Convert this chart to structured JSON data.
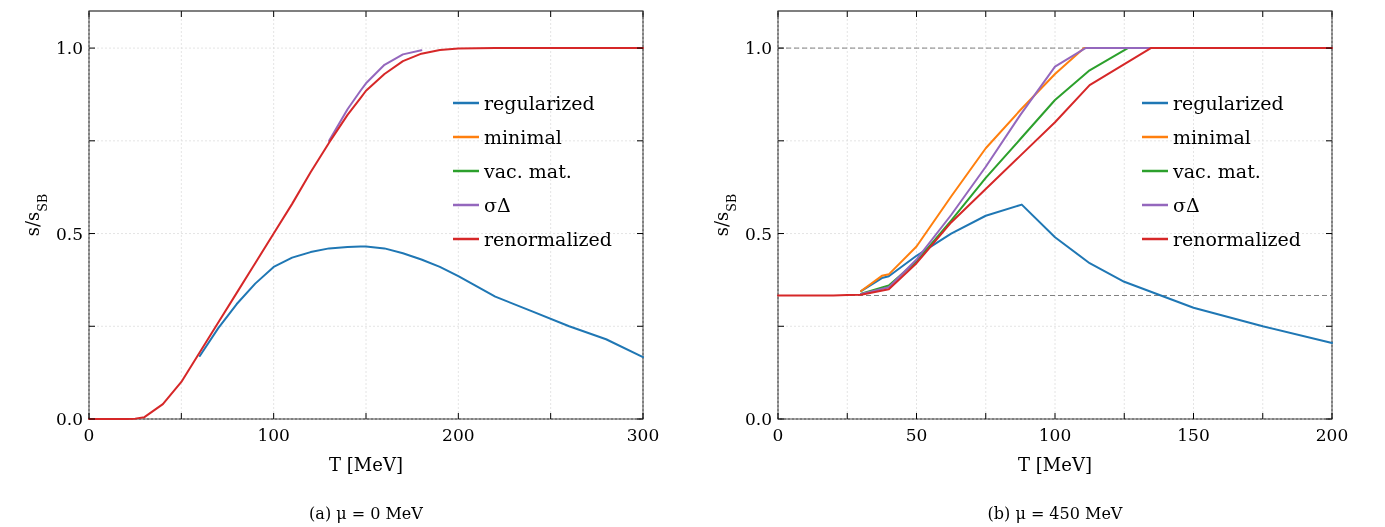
{
  "chart_data": [
    {
      "type": "line",
      "xlabel": "T [MeV]",
      "ylabel": "s/s$_{SB}$",
      "annotations": [
        "(a) μ = 0 MeV"
      ],
      "legend": "right",
      "grid": true,
      "line_style": "solid",
      "marker": "none",
      "xlim": [
        0,
        300
      ],
      "ylim": [
        0,
        1.1
      ],
      "xticks": [
        0,
        {
          "value": 50,
          "label": null
        },
        100,
        {
          "value": 150,
          "label": null
        },
        200,
        {
          "value": 250,
          "label": null
        },
        300
      ],
      "yticks": [
        {
          "value": 0,
          "label": "0.0"
        },
        {
          "value": 0.25,
          "label": null
        },
        0.5,
        {
          "value": 0.75,
          "label": null
        },
        {
          "value": 1,
          "label": "1.0"
        }
      ],
      "x": [
        0,
        20,
        25,
        30,
        40,
        50,
        60,
        70,
        80,
        90,
        100,
        110,
        120,
        130,
        140,
        147,
        150,
        160,
        170,
        180,
        190,
        200,
        220,
        240,
        260,
        280,
        300
      ],
      "series": [
        {
          "name": "regularized",
          "color": "#1f77b4",
          "values": [
            null,
            null,
            null,
            null,
            null,
            null,
            0.17,
            0.245,
            0.31,
            0.365,
            0.41,
            0.435,
            0.45,
            0.46,
            0.464,
            0.465,
            0.465,
            0.46,
            0.447,
            0.43,
            0.41,
            0.385,
            0.33,
            0.29,
            0.25,
            0.215,
            0.167
          ]
        },
        {
          "name": "minimal",
          "color": "#ff7f0e",
          "values": [
            null,
            null,
            null,
            null,
            null,
            null,
            null,
            null,
            null,
            null,
            null,
            null,
            null,
            null,
            null,
            null,
            null,
            null,
            null,
            null,
            null,
            null,
            null,
            null,
            null,
            null,
            null
          ]
        },
        {
          "name": "vac. mat.",
          "color": "#2ca02c",
          "values": [
            null,
            null,
            null,
            null,
            null,
            null,
            null,
            null,
            null,
            null,
            null,
            null,
            null,
            null,
            null,
            null,
            null,
            null,
            null,
            null,
            null,
            null,
            null,
            null,
            null,
            null,
            null
          ]
        },
        {
          "name": "σΔ",
          "color": "#9467bd",
          "values": [
            null,
            null,
            null,
            null,
            null,
            null,
            null,
            null,
            null,
            null,
            null,
            null,
            null,
            0.75,
            0.835,
            0.885,
            0.905,
            0.955,
            0.983,
            0.994,
            null,
            null,
            null,
            null,
            null,
            null,
            null
          ]
        },
        {
          "name": "renormalized",
          "color": "#d62728",
          "values": [
            0,
            0,
            0.001,
            0.005,
            0.04,
            0.1,
            0.18,
            0.26,
            0.34,
            0.42,
            0.5,
            0.58,
            0.665,
            0.745,
            0.82,
            0.865,
            0.885,
            0.93,
            0.965,
            0.985,
            0.995,
            0.999,
            1,
            1,
            1,
            1,
            1
          ]
        }
      ]
    },
    {
      "type": "line",
      "xlabel": "T [MeV]",
      "ylabel": "s/s$_{SB}$",
      "annotations": [
        "(b) μ = 450 MeV"
      ],
      "legend": "right",
      "grid": true,
      "line_style": "solid",
      "marker": "none",
      "xlim": [
        0,
        200
      ],
      "ylim": [
        0,
        1.1
      ],
      "xticks": [
        0,
        {
          "value": 25,
          "label": null
        },
        50,
        {
          "value": 75,
          "label": null
        },
        100,
        {
          "value": 125,
          "label": null
        },
        150,
        {
          "value": 175,
          "label": null
        },
        200
      ],
      "yticks": [
        {
          "value": 0,
          "label": "0.0"
        },
        {
          "value": 0.25,
          "label": null
        },
        0.5,
        {
          "value": 0.75,
          "label": null
        },
        {
          "value": 1,
          "label": "1.0"
        }
      ],
      "ref_lines": [
        {
          "axis": "y",
          "value": 1,
          "color": "#808080",
          "line_style": "dashed"
        },
        {
          "axis": "y",
          "value": 0.333,
          "color": "#808080",
          "line_style": "dashed"
        }
      ],
      "series": [
        {
          "name": "regularized",
          "color": "#1f77b4",
          "x": [
            30,
            37.5,
            40,
            50,
            62.5,
            75,
            88,
            100,
            112.5,
            125,
            137.5,
            150,
            175,
            200
          ],
          "values": [
            0.345,
            0.38,
            0.385,
            0.44,
            0.5,
            0.548,
            0.578,
            0.49,
            0.42,
            0.37,
            0.335,
            0.3,
            0.25,
            0.205
          ]
        },
        {
          "name": "minimal",
          "color": "#ff7f0e",
          "x": [
            30,
            37.5,
            40,
            50,
            62.5,
            75,
            87.5,
            100,
            110.5,
            200
          ],
          "values": [
            0.345,
            0.386,
            0.39,
            0.465,
            0.6,
            0.73,
            0.833,
            0.93,
            1,
            1
          ]
        },
        {
          "name": "vac. mat.",
          "color": "#2ca02c",
          "x": [
            30,
            40,
            50,
            62.5,
            75,
            87.5,
            100,
            112.5,
            126.3,
            200
          ],
          "values": [
            0.338,
            0.36,
            0.425,
            0.535,
            0.65,
            0.755,
            0.86,
            0.94,
            1,
            1
          ]
        },
        {
          "name": "σΔ",
          "color": "#9467bd",
          "x": [
            30,
            40,
            50,
            62.5,
            75,
            87.5,
            100,
            111,
            200
          ],
          "values": [
            0.337,
            0.355,
            0.43,
            0.55,
            0.68,
            0.82,
            0.95,
            1,
            1
          ]
        },
        {
          "name": "renormalized",
          "color": "#d62728",
          "x": [
            0,
            20,
            25,
            30,
            40,
            50,
            62.5,
            75,
            87.5,
            100,
            112.5,
            134.6,
            200
          ],
          "values": [
            0.333,
            0.333,
            0.334,
            0.335,
            0.35,
            0.42,
            0.53,
            0.62,
            0.71,
            0.8,
            0.9,
            1,
            1
          ]
        }
      ]
    }
  ]
}
